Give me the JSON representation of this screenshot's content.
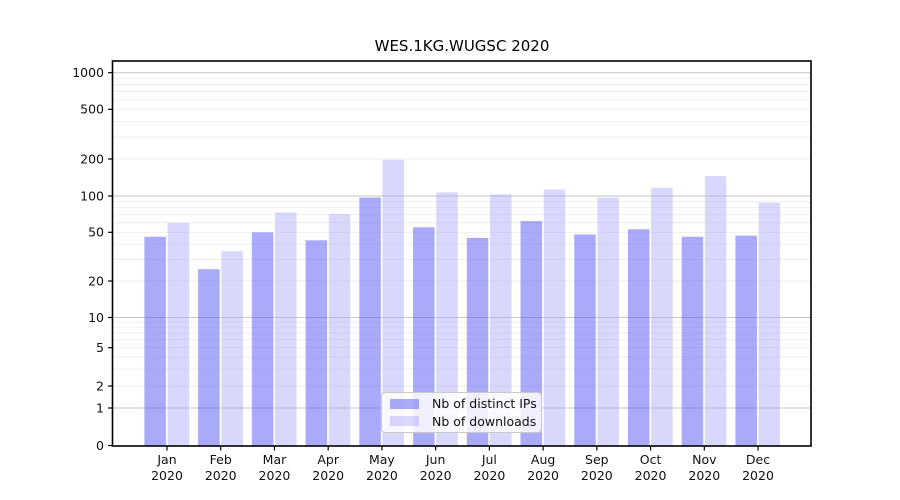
{
  "chart_data": {
    "type": "bar",
    "title": "WES.1KG.WUGSC 2020",
    "categories": [
      "Jan 2020",
      "Feb 2020",
      "Mar 2020",
      "Apr 2020",
      "May 2020",
      "Jun 2020",
      "Jul 2020",
      "Aug 2020",
      "Sep 2020",
      "Oct 2020",
      "Nov 2020",
      "Dec 2020"
    ],
    "series": [
      {
        "name": "Nb of distinct IPs",
        "color": "rgba(100,100,246,0.55)",
        "values": [
          46,
          25,
          50,
          43,
          97,
          55,
          45,
          62,
          48,
          53,
          46,
          47
        ]
      },
      {
        "name": "Nb of downloads",
        "color": "rgba(168,168,248,0.45)",
        "values": [
          60,
          35,
          73,
          71,
          197,
          107,
          103,
          113,
          97,
          117,
          145,
          88
        ]
      }
    ],
    "y_axis": {
      "scale": "symlog",
      "range": [
        0,
        1000
      ],
      "ticks": [
        0,
        1,
        2,
        5,
        10,
        20,
        50,
        100,
        200,
        500,
        1000
      ],
      "decade_lines": [
        1,
        10,
        100,
        1000
      ],
      "minor_gridlines": [
        3,
        4,
        6,
        7,
        8,
        9,
        30,
        40,
        60,
        70,
        80,
        90,
        300,
        400,
        600,
        700,
        800,
        900
      ]
    },
    "x_axis": {
      "tick_labels_two_line": true
    },
    "legend": {
      "position": "lower center",
      "entries": [
        "Nb of distinct IPs",
        "Nb of downloads"
      ]
    },
    "grid": "both",
    "colors": {
      "spine": "#000000",
      "tick_text": "#111111",
      "decade_grid": "#c6c6c6",
      "minor_grid": "#ededed",
      "background": "#ffffff"
    }
  }
}
